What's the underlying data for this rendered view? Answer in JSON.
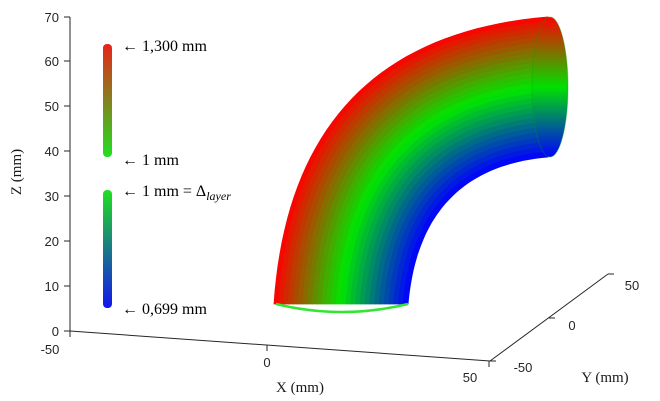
{
  "chart_data": {
    "type": "surface3d",
    "title": "",
    "xlabel": "X (mm)",
    "ylabel": "Y (mm)",
    "zlabel": "Z (mm)",
    "x_ticks": [
      "-50",
      "0",
      "50"
    ],
    "y_ticks": [
      "-50",
      "0",
      "50"
    ],
    "z_ticks": [
      "0",
      "10",
      "20",
      "30",
      "40",
      "50",
      "60",
      "70"
    ],
    "xlim": [
      -50,
      50
    ],
    "ylim": [
      -50,
      50
    ],
    "zlim": [
      0,
      70
    ],
    "colorbar_top": {
      "max_label": "← 1,300 mm",
      "min_label": "← 1 mm",
      "colors": [
        "#e8241c",
        "#20e020"
      ]
    },
    "colorbar_bottom": {
      "max_label_prefix": "← 1 mm = Δ",
      "max_label_sub": "layer",
      "min_label": "← 0,699 mm",
      "colors": [
        "#20e020",
        "#1414ee"
      ]
    },
    "surface_colors": [
      "#ff0000",
      "#00e600",
      "#0000ff"
    ]
  }
}
